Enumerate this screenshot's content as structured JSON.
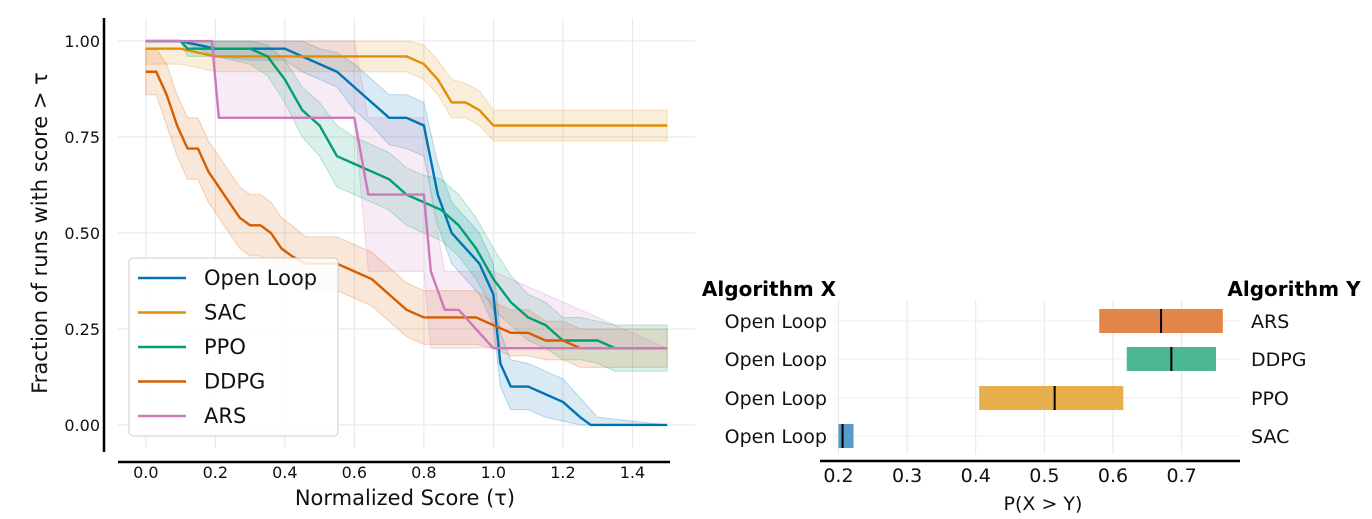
{
  "chart_data": [
    {
      "type": "line",
      "xlabel": "Normalized Score (τ)",
      "ylabel": "Fraction of runs with score  > τ",
      "xlim": [
        -0.08,
        1.58
      ],
      "ylim": [
        -0.06,
        1.06
      ],
      "xticks": [
        "0.0",
        "0.2",
        "0.4",
        "0.6",
        "0.8",
        "1.0",
        "1.2",
        "1.4"
      ],
      "yticks": [
        "0.00",
        "0.25",
        "0.50",
        "0.75",
        "1.00"
      ],
      "grid": true,
      "legend_position": "lower-left",
      "series": [
        {
          "name": "Open Loop",
          "color": "#0173b2",
          "x": [
            0.0,
            0.1,
            0.2,
            0.3,
            0.4,
            0.45,
            0.5,
            0.55,
            0.6,
            0.65,
            0.7,
            0.75,
            0.8,
            0.84,
            0.88,
            0.92,
            0.96,
            0.98,
            1.0,
            1.02,
            1.05,
            1.1,
            1.15,
            1.2,
            1.25,
            1.28,
            1.3,
            1.5
          ],
          "y": [
            1.0,
            1.0,
            0.98,
            0.98,
            0.98,
            0.96,
            0.94,
            0.92,
            0.88,
            0.84,
            0.8,
            0.8,
            0.78,
            0.6,
            0.5,
            0.46,
            0.42,
            0.38,
            0.34,
            0.16,
            0.1,
            0.1,
            0.08,
            0.06,
            0.02,
            0.0,
            0.0,
            0.0
          ],
          "ci_low": [
            1.0,
            1.0,
            0.96,
            0.95,
            0.95,
            0.92,
            0.9,
            0.88,
            0.82,
            0.78,
            0.73,
            0.72,
            0.7,
            0.52,
            0.42,
            0.38,
            0.34,
            0.3,
            0.26,
            0.1,
            0.04,
            0.04,
            0.02,
            0.01,
            0.0,
            0.0,
            0.0,
            0.0
          ],
          "ci_high": [
            1.0,
            1.0,
            1.0,
            1.0,
            1.0,
            1.0,
            0.98,
            0.97,
            0.94,
            0.9,
            0.86,
            0.86,
            0.84,
            0.68,
            0.58,
            0.54,
            0.5,
            0.46,
            0.42,
            0.24,
            0.17,
            0.16,
            0.14,
            0.12,
            0.07,
            0.04,
            0.02,
            0.0
          ]
        },
        {
          "name": "SAC",
          "color": "#de8f05",
          "x": [
            0.0,
            0.1,
            0.2,
            0.3,
            0.4,
            0.5,
            0.6,
            0.7,
            0.75,
            0.8,
            0.84,
            0.88,
            0.92,
            0.96,
            1.0,
            1.5
          ],
          "y": [
            0.98,
            0.98,
            0.96,
            0.96,
            0.96,
            0.96,
            0.96,
            0.96,
            0.96,
            0.94,
            0.9,
            0.84,
            0.84,
            0.82,
            0.78,
            0.78
          ],
          "ci_low": [
            0.94,
            0.94,
            0.92,
            0.92,
            0.92,
            0.92,
            0.92,
            0.92,
            0.92,
            0.9,
            0.86,
            0.8,
            0.8,
            0.78,
            0.74,
            0.74
          ],
          "ci_high": [
            1.0,
            1.0,
            1.0,
            1.0,
            1.0,
            1.0,
            1.0,
            1.0,
            1.0,
            0.99,
            0.95,
            0.9,
            0.89,
            0.87,
            0.82,
            0.82
          ]
        },
        {
          "name": "PPO",
          "color": "#029e73",
          "x": [
            0.0,
            0.1,
            0.12,
            0.2,
            0.3,
            0.35,
            0.4,
            0.45,
            0.5,
            0.55,
            0.6,
            0.65,
            0.7,
            0.75,
            0.8,
            0.85,
            0.9,
            0.95,
            1.0,
            1.05,
            1.1,
            1.15,
            1.2,
            1.25,
            1.3,
            1.35,
            1.5
          ],
          "y": [
            1.0,
            1.0,
            0.98,
            0.98,
            0.98,
            0.96,
            0.9,
            0.82,
            0.78,
            0.7,
            0.68,
            0.66,
            0.64,
            0.6,
            0.58,
            0.56,
            0.52,
            0.46,
            0.38,
            0.32,
            0.28,
            0.26,
            0.22,
            0.22,
            0.22,
            0.2,
            0.2
          ],
          "ci_low": [
            1.0,
            1.0,
            0.96,
            0.96,
            0.94,
            0.91,
            0.84,
            0.75,
            0.7,
            0.62,
            0.6,
            0.58,
            0.56,
            0.52,
            0.5,
            0.48,
            0.44,
            0.38,
            0.3,
            0.26,
            0.22,
            0.2,
            0.17,
            0.17,
            0.16,
            0.14,
            0.14
          ],
          "ci_high": [
            1.0,
            1.0,
            1.0,
            1.0,
            1.0,
            0.99,
            0.95,
            0.88,
            0.84,
            0.78,
            0.75,
            0.73,
            0.71,
            0.67,
            0.65,
            0.64,
            0.6,
            0.54,
            0.46,
            0.39,
            0.34,
            0.32,
            0.28,
            0.28,
            0.27,
            0.26,
            0.26
          ]
        },
        {
          "name": "DDPG",
          "color": "#d55e00",
          "x": [
            0.0,
            0.03,
            0.06,
            0.09,
            0.12,
            0.15,
            0.18,
            0.21,
            0.24,
            0.27,
            0.3,
            0.33,
            0.36,
            0.39,
            0.42,
            0.46,
            0.5,
            0.55,
            0.6,
            0.65,
            0.7,
            0.75,
            0.8,
            0.85,
            0.9,
            0.95,
            1.0,
            1.05,
            1.1,
            1.15,
            1.2,
            1.25,
            1.5
          ],
          "y": [
            0.92,
            0.92,
            0.86,
            0.78,
            0.72,
            0.72,
            0.66,
            0.62,
            0.58,
            0.54,
            0.52,
            0.52,
            0.5,
            0.46,
            0.44,
            0.42,
            0.42,
            0.42,
            0.4,
            0.38,
            0.34,
            0.3,
            0.28,
            0.28,
            0.28,
            0.28,
            0.26,
            0.24,
            0.24,
            0.22,
            0.22,
            0.2,
            0.2
          ],
          "ci_low": [
            0.86,
            0.86,
            0.78,
            0.7,
            0.64,
            0.64,
            0.58,
            0.54,
            0.5,
            0.46,
            0.44,
            0.44,
            0.42,
            0.38,
            0.36,
            0.35,
            0.35,
            0.35,
            0.33,
            0.31,
            0.27,
            0.23,
            0.21,
            0.21,
            0.21,
            0.21,
            0.2,
            0.18,
            0.18,
            0.17,
            0.17,
            0.15,
            0.15
          ],
          "ci_high": [
            0.98,
            0.98,
            0.94,
            0.86,
            0.8,
            0.8,
            0.74,
            0.7,
            0.66,
            0.62,
            0.6,
            0.6,
            0.58,
            0.54,
            0.52,
            0.49,
            0.49,
            0.49,
            0.47,
            0.45,
            0.41,
            0.37,
            0.35,
            0.35,
            0.35,
            0.35,
            0.32,
            0.3,
            0.3,
            0.27,
            0.27,
            0.25,
            0.25
          ]
        },
        {
          "name": "ARS",
          "color": "#cc78bc",
          "x": [
            0.0,
            0.1,
            0.19,
            0.21,
            0.3,
            0.4,
            0.5,
            0.6,
            0.64,
            0.7,
            0.8,
            0.82,
            0.86,
            0.9,
            1.0,
            1.5
          ],
          "y": [
            1.0,
            1.0,
            1.0,
            0.8,
            0.8,
            0.8,
            0.8,
            0.8,
            0.6,
            0.6,
            0.6,
            0.4,
            0.3,
            0.3,
            0.2,
            0.2
          ],
          "ci_low": [
            1.0,
            1.0,
            1.0,
            0.8,
            0.8,
            0.8,
            0.8,
            0.8,
            0.4,
            0.4,
            0.4,
            0.2,
            0.2,
            0.2,
            0.2,
            0.2
          ],
          "ci_high": [
            1.0,
            1.0,
            1.0,
            1.0,
            1.0,
            1.0,
            1.0,
            1.0,
            0.8,
            0.8,
            0.8,
            0.6,
            0.4,
            0.4,
            0.4,
            0.2
          ]
        }
      ]
    },
    {
      "type": "bar",
      "orientation": "horizontal",
      "xlabel": "P(X > Y)",
      "xlim": [
        0.195,
        0.785
      ],
      "xticks": [
        "0.2",
        "0.3",
        "0.4",
        "0.5",
        "0.6",
        "0.7"
      ],
      "grid": true,
      "left_header": "Algorithm X",
      "right_header": "Algorithm Y",
      "rows": [
        {
          "x_label": "Open Loop",
          "y_label": "ARS",
          "low": 0.58,
          "high": 0.76,
          "point": 0.67,
          "color": "#e17b3a"
        },
        {
          "x_label": "Open Loop",
          "y_label": "DDPG",
          "low": 0.62,
          "high": 0.75,
          "point": 0.685,
          "color": "#3cb18b"
        },
        {
          "x_label": "Open Loop",
          "y_label": "PPO",
          "low": 0.405,
          "high": 0.615,
          "point": 0.515,
          "color": "#e5a83d"
        },
        {
          "x_label": "Open Loop",
          "y_label": "SAC",
          "low": 0.2,
          "high": 0.222,
          "point": 0.206,
          "color": "#4a93c7"
        }
      ]
    }
  ]
}
